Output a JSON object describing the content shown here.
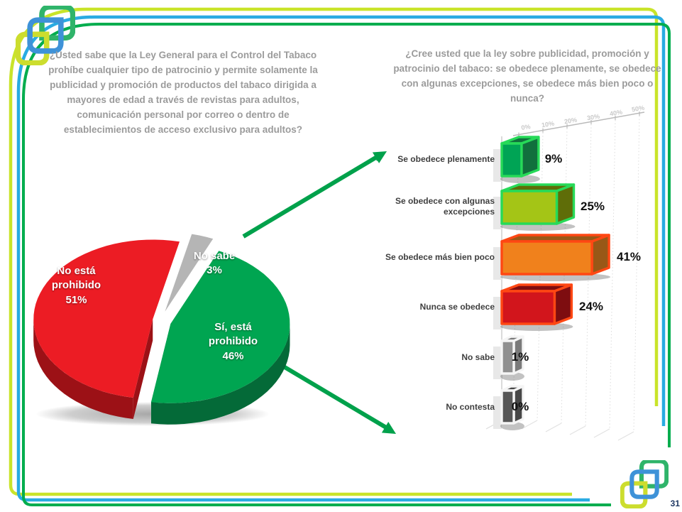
{
  "slide": {
    "page_number": "31"
  },
  "chart_data": [
    {
      "type": "pie",
      "title": "¿Usted sabe que la Ley General para el Control del Tabaco prohíbe cualquier tipo de patrocinio y permite solamente la publicidad y promoción de productos del tabaco dirigida a mayores de edad a través de revistas para adultos, comunicación personal por correo o dentro de establecimientos de acceso exclusivo para adultos?",
      "legend_position": "none",
      "slices": [
        {
          "name": "No sabe",
          "value": 3,
          "label": "No sabe\n3%",
          "color": "#b5b5b5",
          "side": "#8a8a8a"
        },
        {
          "name": "Sí, está prohibido",
          "value": 46,
          "label": "Sí, está\nprohibido\n46%",
          "color": "#00a551",
          "side": "#046a38"
        },
        {
          "name": "No está prohibido",
          "value": 51,
          "label": "No está\nprohibido\n51%",
          "color": "#ec1c24",
          "side": "#9c1116"
        }
      ]
    },
    {
      "type": "bar",
      "orientation": "horizontal",
      "title": "¿Cree usted que la ley sobre publicidad, promoción y patrocinio del tabaco: se obedece plenamente, se obedece con algunas excepciones, se obedece más bien poco o nunca?",
      "xlim": [
        0,
        50
      ],
      "grid": true,
      "ticks": [
        "0%",
        "10%",
        "20%",
        "30%",
        "40%",
        "50%"
      ],
      "rows": [
        {
          "label": "Se obedece plenamente",
          "value": 9,
          "value_label": "9%",
          "front": "#00a455",
          "side": "#11703d",
          "border": "#27da58"
        },
        {
          "label": "Se obedece con algunas excepciones",
          "value": 25,
          "value_label": "25%",
          "front": "#a4c516",
          "side": "#5f6d08",
          "border": "#27da58"
        },
        {
          "label": "Se obedece más bien poco",
          "value": 41,
          "value_label": "41%",
          "front": "#f0811c",
          "side": "#995817",
          "border": "#ff4713"
        },
        {
          "label": "Nunca se obedece",
          "value": 24,
          "value_label": "24%",
          "front": "#d2151c",
          "side": "#7e0d10",
          "border": "#ff4713"
        },
        {
          "label": "No sabe",
          "value": 1,
          "value_label": "1%",
          "front": "#909090",
          "side": "#7a7a7a",
          "border": "#f5f5f5"
        },
        {
          "label": "No contesta",
          "value": 0,
          "value_label": "0%",
          "front": "#575757",
          "side": "#474747",
          "border": "#f5f5f5"
        }
      ]
    }
  ],
  "frame_colors": {
    "yellow": "#c9e42a",
    "blue": "#29abe2",
    "green": "#00ad4e",
    "arrow": "#00a14b"
  }
}
